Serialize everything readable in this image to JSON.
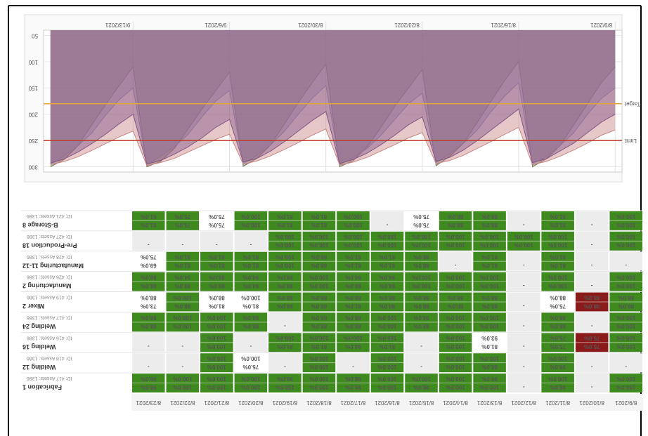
{
  "chart_data": {
    "type": "area",
    "categories": [
      "8/9/2021",
      null,
      null,
      null,
      null,
      null,
      null,
      "8/16/2021",
      null,
      null,
      null,
      null,
      null,
      null,
      "8/23/2021",
      null,
      null,
      null,
      null,
      null,
      null,
      "8/30/2021",
      null,
      null,
      null,
      null,
      null,
      null,
      "9/6/2021",
      null,
      null,
      null,
      null,
      null,
      null,
      "9/13/2021",
      null,
      null,
      null,
      null,
      null,
      null
    ],
    "ylim": [
      40,
      310
    ],
    "yticks": [
      50,
      100,
      150,
      200,
      250,
      300
    ],
    "grid": true,
    "opacity": 0.45,
    "series": [
      {
        "color": "#6f6f52",
        "values": [
          110,
          140,
          180,
          220,
          260,
          285,
          300,
          100,
          135,
          175,
          215,
          255,
          280,
          298,
          115,
          150,
          185,
          225,
          262,
          288,
          300,
          105,
          140,
          178,
          218,
          258,
          284,
          299,
          120,
          155,
          190,
          228,
          265,
          290,
          300,
          110,
          145,
          182,
          220,
          260,
          286,
          300
        ]
      },
      {
        "color": "#7b8fd0",
        "values": [
          150,
          170,
          200,
          235,
          260,
          280,
          295,
          140,
          165,
          195,
          230,
          255,
          275,
          292,
          160,
          180,
          210,
          240,
          265,
          282,
          296,
          145,
          170,
          200,
          232,
          258,
          278,
          294,
          155,
          175,
          205,
          238,
          262,
          280,
          296,
          150,
          172,
          202,
          236,
          260,
          279,
          295
        ]
      },
      {
        "color": "#4a2f86",
        "values": [
          200,
          215,
          235,
          255,
          270,
          285,
          292,
          190,
          210,
          230,
          250,
          268,
          282,
          290,
          205,
          220,
          240,
          258,
          274,
          286,
          294,
          195,
          212,
          232,
          252,
          270,
          284,
          291,
          210,
          225,
          245,
          262,
          276,
          288,
          295,
          200,
          218,
          238,
          256,
          272,
          285,
          293
        ]
      },
      {
        "color": "#c98585",
        "values": [
          230,
          240,
          255,
          268,
          280,
          290,
          296,
          225,
          238,
          252,
          265,
          278,
          288,
          294,
          235,
          245,
          258,
          270,
          282,
          291,
          297,
          228,
          240,
          254,
          267,
          279,
          289,
          295,
          238,
          248,
          260,
          272,
          284,
          292,
          298,
          232,
          243,
          256,
          269,
          281,
          290,
          296
        ]
      }
    ],
    "reference_lines": [
      {
        "value": 180,
        "label": "Target",
        "color": "#e8a33a"
      },
      {
        "value": 250,
        "label": "Limit",
        "color": "#c0392b"
      }
    ]
  },
  "table": {
    "dates": [
      "8/9/2021",
      "8/10/2021",
      "8/11/2021",
      "8/12/2021",
      "8/13/2021",
      "8/14/2021",
      "8/15/2021",
      "8/16/2021",
      "8/17/2021",
      "8/18/2021",
      "8/19/2021",
      "8/20/2021",
      "8/21/2021",
      "8/22/2021",
      "8/23/2021"
    ],
    "status_colors": {
      "ok": "#3f8a1f",
      "none": "#ececec",
      "low": "#ffffff",
      "bad": "#8b1a1a"
    },
    "rows": [
      {
        "name": "Fabrication 1",
        "id": "ID: 417 Assets: 1386",
        "cells": [
          [
            "ok",
            "100.0%",
            "100.0%"
          ],
          [
            "none",
            "-"
          ],
          [
            "ok",
            "98.0%",
            "100.0%"
          ],
          [
            "none",
            "-"
          ],
          [
            "ok",
            "100.0%",
            "99.0%"
          ],
          [
            "ok",
            "100.0%",
            "100.0%"
          ],
          [
            "ok",
            "98.0%",
            "100.0%"
          ],
          [
            "ok",
            "100.0%",
            "100.0%"
          ],
          [
            "ok",
            "96.0%",
            "98.0%"
          ],
          [
            "ok",
            "100.0%",
            "100.0%"
          ],
          [
            "ok",
            "100.0%",
            "99.0%"
          ],
          [
            "ok",
            "100.0%",
            "100.0%"
          ],
          [
            "ok",
            "100.0%",
            "100.0%"
          ],
          [
            "ok",
            "100.0%",
            "100.0%"
          ],
          [
            "ok",
            "98.0%",
            "96.0%"
          ]
        ]
      },
      {
        "name": "Welding 12",
        "id": "ID: 418 Assets: 1386",
        "cells": [
          [
            "none",
            "-"
          ],
          [
            "none",
            "-"
          ],
          [
            "ok",
            "99.0%",
            "100.0%"
          ],
          [
            "none",
            "-"
          ],
          [
            "ok",
            "88.0%",
            "100.0%"
          ],
          [
            "ok",
            "100.0%",
            "100.0%"
          ],
          [
            "none",
            "-"
          ],
          [
            "ok",
            "100.0%",
            "100.0%"
          ],
          [
            "none",
            "-"
          ],
          [
            "ok",
            "100.0%",
            "100.0%"
          ],
          [
            "none",
            "-"
          ],
          [
            "low",
            "75.0%",
            "100.0%"
          ],
          [
            "ok",
            "100.0%",
            "100.0%"
          ],
          [
            "none",
            "-"
          ],
          [
            "none",
            "-"
          ]
        ]
      },
      {
        "name": "Welding 16",
        "id": "ID: 416 Assets: 1386",
        "cells": [
          [
            "ok",
            "100.0%",
            "100.0%"
          ],
          [
            "bad",
            "75.0%",
            "75.0%"
          ],
          [
            "ok",
            "75.0%",
            "75.0%"
          ],
          [
            "none",
            "-"
          ],
          [
            "low",
            "81.0%",
            "93.0%"
          ],
          [
            "ok",
            "100.0%",
            "100.0%"
          ],
          [
            "none",
            "-"
          ],
          [
            "ok",
            "81.0%",
            "100.0%"
          ],
          [
            "ok",
            "94.0%",
            "100.0%"
          ],
          [
            "ok",
            "81.0%",
            "100.0%"
          ],
          [
            "ok",
            "81.0%",
            "100.0%"
          ],
          [
            "none",
            "-"
          ],
          [
            "ok",
            "100.0%",
            "100.0%"
          ],
          [
            "none",
            "-"
          ],
          [
            "none",
            "-"
          ]
        ]
      },
      {
        "name": "Welding 24",
        "id": "ID: 417 Assets: 1386",
        "cells": [
          [
            "ok",
            "100.0%",
            "100.0%"
          ],
          [
            "none",
            "-"
          ],
          [
            "ok",
            "88.0%",
            "88.0%"
          ],
          [
            "none",
            "-"
          ],
          [
            "ok",
            "100.0%",
            "100.0%"
          ],
          [
            "ok",
            "100.0%",
            "100.0%"
          ],
          [
            "ok",
            "88.0%",
            "94.0%"
          ],
          [
            "ok",
            "100.0%",
            "100.0%"
          ],
          [
            "ok",
            "88.0%",
            "88.0%"
          ],
          [
            "ok",
            "88.0%",
            "88.0%"
          ],
          [
            "none",
            "-"
          ],
          [
            "ok",
            "88.0%",
            "88.0%"
          ],
          [
            "ok",
            "100.0%",
            "100.0%"
          ],
          [
            "ok",
            "100.0%",
            "100.0%"
          ],
          [
            "ok",
            "88.0%",
            "88.0%"
          ]
        ]
      },
      {
        "name": "Mixer 2",
        "id": "ID: 419 Assets: 1386",
        "cells": [
          [
            "ok",
            "88.0%",
            "88.0%"
          ],
          [
            "bad",
            "88.0%",
            "88.0%"
          ],
          [
            "low",
            "75.0%",
            "88.0%"
          ],
          [
            "none",
            "-"
          ],
          [
            "ok",
            "88.0%",
            "88.0%"
          ],
          [
            "ok",
            "88.0%",
            "88.0%"
          ],
          [
            "ok",
            "88.0%",
            "88.0%"
          ],
          [
            "ok",
            "88.0%",
            "88.0%"
          ],
          [
            "ok",
            "81.0%",
            "88.0%"
          ],
          [
            "ok",
            "88.0%",
            "88.0%"
          ],
          [
            "ok",
            "88.0%",
            "88.0%"
          ],
          [
            "low",
            "81.0%",
            "100.0%"
          ],
          [
            "low",
            "81.0%",
            "88.0%"
          ],
          [
            "ok",
            "88.0%",
            "100.0%"
          ],
          [
            "low",
            "73.0%",
            "88.0%"
          ]
        ]
      },
      {
        "name": "Manufacturing 2",
        "id": "ID: 426 Assets: 1386",
        "cells": [
          [
            "ok",
            "100.0%",
            "100.0%"
          ],
          [
            "none",
            "-"
          ],
          [
            "ok",
            "100.0%",
            "100.0%"
          ],
          [
            "none",
            "-"
          ],
          [
            "ok",
            "100.0%",
            "100.0%"
          ],
          [
            "ok",
            "100.0%",
            "100.0%"
          ],
          [
            "ok",
            "100.0%",
            "100.0%"
          ],
          [
            "ok",
            "94.0%",
            "94.0%"
          ],
          [
            "ok",
            "88.0%",
            "94.0%"
          ],
          [
            "ok",
            "100.0%",
            "100.0%"
          ],
          [
            "ok",
            "88.0%",
            "88.0%"
          ],
          [
            "ok",
            "94.0%",
            "94.0%"
          ],
          [
            "ok",
            "88.0%",
            "88.0%"
          ],
          [
            "ok",
            "88.0%",
            "94.0%"
          ],
          [
            "ok",
            "88.0%",
            "88.0%"
          ]
        ]
      },
      {
        "name": "Manufacturing 11-12",
        "id": "ID: 428 Assets: 1386",
        "cells": [
          [
            "none",
            "-"
          ],
          [
            "none",
            "-"
          ],
          [
            "ok",
            "81.0%",
            "81.0%"
          ],
          [
            "none",
            "-"
          ],
          [
            "ok",
            "81.0%",
            "81.0%"
          ],
          [
            "none",
            "-"
          ],
          [
            "ok",
            "88.0%",
            "88.0%"
          ],
          [
            "ok",
            "81.0%",
            "81.0%"
          ],
          [
            "ok",
            "81.0%",
            "81.0%"
          ],
          [
            "ok",
            "88.0%",
            "88.0%"
          ],
          [
            "ok",
            "100.0%",
            "100.0%"
          ],
          [
            "ok",
            "81.0%",
            "81.0%"
          ],
          [
            "ok",
            "81.0%",
            "81.0%"
          ],
          [
            "ok",
            "81.0%",
            "81.0%"
          ],
          [
            "low",
            "69.0%",
            "75.0%"
          ]
        ]
      },
      {
        "name": "Pre-Production 18",
        "id": "ID: 427 Assets: 1386",
        "cells": [
          [
            "ok",
            "100.0%",
            "100.0%"
          ],
          [
            "none",
            "-"
          ],
          [
            "ok",
            "100.0%",
            "100.0%"
          ],
          [
            "ok",
            "100.0%",
            "100.0%"
          ],
          [
            "ok",
            "100.0%",
            "100.0%"
          ],
          [
            "ok",
            "100.0%",
            "100.0%"
          ],
          [
            "ok",
            "100.0%",
            "100.0%"
          ],
          [
            "ok",
            "100.0%",
            "100.0%"
          ],
          [
            "ok",
            "100.0%",
            "100.0%"
          ],
          [
            "ok",
            "100.0%",
            "100.0%"
          ],
          [
            "ok",
            "100.0%",
            "100.0%"
          ],
          [
            "none",
            "-"
          ],
          [
            "none",
            "-"
          ],
          [
            "none",
            "-"
          ],
          [
            "none",
            "-"
          ]
        ]
      },
      {
        "name": "B-Storage 8",
        "id": "ID: 421 Assets: 1386",
        "cells": [
          [
            "ok",
            "100.0%",
            "100.0%"
          ],
          [
            "none",
            "-"
          ],
          [
            "ok",
            "81.0%",
            "81.0%"
          ],
          [
            "none",
            "-"
          ],
          [
            "ok",
            "88.0%",
            "88.0%"
          ],
          [
            "ok",
            "88.0%",
            "88.0%"
          ],
          [
            "low",
            "75.0%",
            "75.0%"
          ],
          [
            "none",
            "-"
          ],
          [
            "ok",
            "100.0%",
            "100.0%"
          ],
          [
            "ok",
            "81.0%",
            "81.0%"
          ],
          [
            "ok",
            "81.0%",
            "81.0%"
          ],
          [
            "ok",
            "100.0%",
            "100.0%"
          ],
          [
            "low",
            "75.0%",
            "75.0%"
          ],
          [
            "ok",
            "75.0%",
            "75.0%"
          ],
          [
            "ok",
            "81.0%",
            "81.0%"
          ]
        ]
      }
    ]
  }
}
